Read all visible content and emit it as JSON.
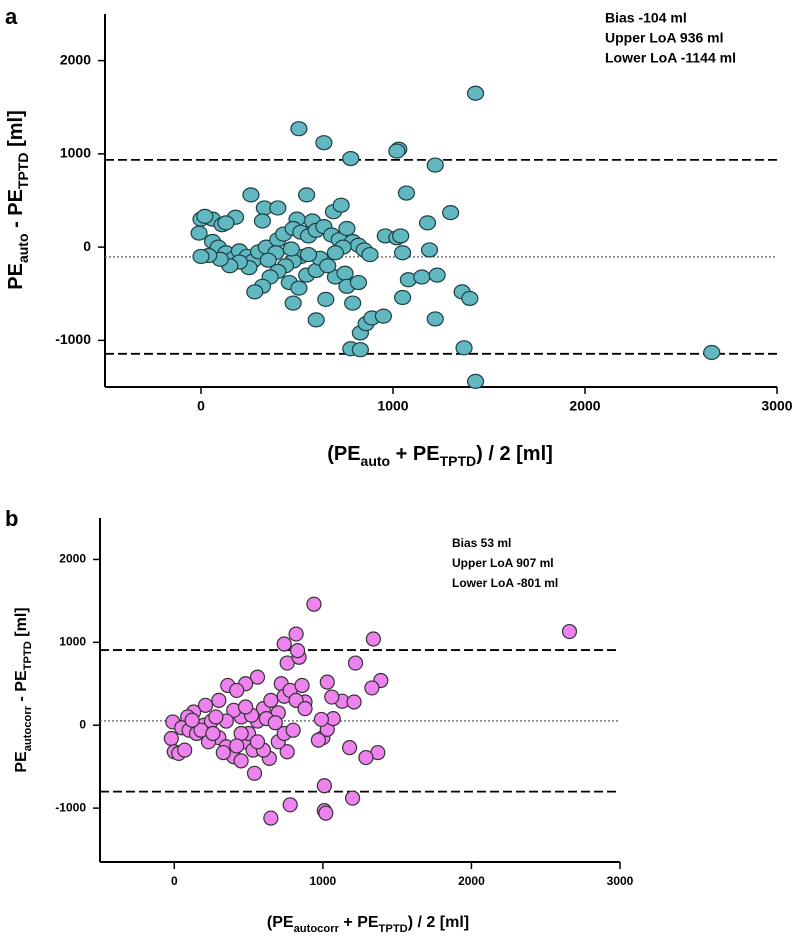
{
  "chart_data": [
    {
      "type": "scatter",
      "panel": "a",
      "annotations": [
        "Bias -104 ml",
        "Upper LoA 936 ml",
        "Lower LoA -1144 ml"
      ],
      "xlabel": [
        {
          "text": "(PE"
        },
        {
          "text": "auto",
          "sub": true
        },
        {
          "text": " + PE"
        },
        {
          "text": "TPTD",
          "sub": true
        },
        {
          "text": ") / 2 [ml]"
        }
      ],
      "ylabel": [
        {
          "text": "PE"
        },
        {
          "text": "auto",
          "sub": true
        },
        {
          "text": " - PE"
        },
        {
          "text": "TPTD",
          "sub": true
        },
        {
          "text": " [ml]"
        }
      ],
      "xlim": [
        -500,
        3000
      ],
      "xticks": [
        0,
        1000,
        2000,
        3000
      ],
      "ylim": [
        -1500,
        2500
      ],
      "yticks": [
        -1000,
        0,
        1000,
        2000
      ],
      "hlines": [
        {
          "value": -104,
          "style": "dotted"
        },
        {
          "value": 936,
          "style": "dashed"
        },
        {
          "value": -1144,
          "style": "dashed"
        }
      ],
      "color": "#62b8c0",
      "edgecolor": "#1d3f44",
      "marker": "ellipse",
      "x": [
        1430,
        510,
        640,
        780,
        1030,
        1020,
        1220,
        1070,
        1300,
        1180,
        550,
        260,
        330,
        400,
        690,
        730,
        580,
        500,
        320,
        180,
        60,
        0,
        20,
        110,
        130,
        -10,
        60,
        90,
        130,
        170,
        200,
        240,
        270,
        300,
        340,
        400,
        430,
        480,
        520,
        560,
        600,
        640,
        680,
        720,
        760,
        790,
        820,
        850,
        880,
        960,
        1020,
        1050,
        1080,
        1150,
        1230,
        1190,
        1040,
        520,
        480,
        440,
        400,
        360,
        320,
        280,
        250,
        200,
        150,
        100,
        40,
        0,
        460,
        510,
        550,
        600,
        650,
        700,
        750,
        760,
        790,
        820,
        830,
        860,
        890,
        950,
        600,
        480,
        1050,
        1220,
        1360,
        1400,
        780,
        830,
        1370,
        1430,
        2660,
        470,
        390,
        350,
        620,
        560,
        660,
        740,
        700
      ],
      "values": [
        1650,
        1270,
        1120,
        950,
        1050,
        1030,
        880,
        580,
        370,
        260,
        560,
        560,
        420,
        420,
        380,
        450,
        280,
        300,
        280,
        320,
        300,
        300,
        330,
        240,
        260,
        150,
        60,
        0,
        -60,
        -120,
        -40,
        -100,
        -150,
        -50,
        0,
        80,
        140,
        200,
        160,
        120,
        180,
        220,
        130,
        80,
        200,
        60,
        20,
        -30,
        -80,
        120,
        100,
        -60,
        -350,
        -320,
        -300,
        -30,
        120,
        -100,
        -150,
        -200,
        -260,
        -320,
        -420,
        -480,
        -220,
        -160,
        -200,
        -130,
        -90,
        -100,
        -380,
        -440,
        -300,
        -250,
        -560,
        -320,
        -280,
        -420,
        -600,
        -380,
        -920,
        -820,
        -760,
        -740,
        -780,
        -600,
        -540,
        -770,
        -480,
        -550,
        -1090,
        -1100,
        -1080,
        -1440,
        -1130,
        -20,
        -60,
        -140,
        -120,
        -80,
        -200,
        0,
        -60
      ]
    },
    {
      "type": "scatter",
      "panel": "b",
      "annotations": [
        "Bias 53 ml",
        "Upper LoA 907 ml",
        "Lower LoA -801 ml"
      ],
      "xlabel": [
        {
          "text": "(PE"
        },
        {
          "text": "autocorr",
          "sub": true
        },
        {
          "text": " + PE"
        },
        {
          "text": "TPTD",
          "sub": true
        },
        {
          "text": ") / 2 [ml]"
        }
      ],
      "ylabel": [
        {
          "text": "PE"
        },
        {
          "text": "autocorr",
          "sub": true
        },
        {
          "text": " - PE"
        },
        {
          "text": "TPTD",
          "sub": true
        },
        {
          "text": " [ml]"
        }
      ],
      "xlim": [
        -500,
        3000
      ],
      "xticks": [
        0,
        1000,
        2000,
        3000
      ],
      "ylim": [
        -1650,
        2500
      ],
      "yticks": [
        -1000,
        0,
        1000,
        2000
      ],
      "hlines": [
        {
          "value": 53,
          "style": "dotted"
        },
        {
          "value": 907,
          "style": "dashed"
        },
        {
          "value": -801,
          "style": "dashed"
        }
      ],
      "color": "#ee82ee",
      "edgecolor": "#333333",
      "marker": "circle",
      "x": [
        940,
        2660,
        1340,
        820,
        740,
        760,
        840,
        830,
        1220,
        1030,
        1390,
        1330,
        1130,
        1060,
        880,
        720,
        560,
        480,
        360,
        420,
        300,
        210,
        130,
        90,
        -10,
        50,
        -20,
        0,
        30,
        100,
        150,
        200,
        250,
        300,
        350,
        400,
        450,
        470,
        530,
        500,
        560,
        600,
        650,
        700,
        740,
        780,
        820,
        860,
        880,
        760,
        700,
        640,
        600,
        540,
        650,
        780,
        1010,
        1010,
        1020,
        1200,
        1370,
        1290,
        1180,
        1000,
        1030,
        970,
        1210,
        1070,
        990,
        450,
        400,
        350,
        280,
        230,
        180,
        120,
        70,
        450,
        520,
        620,
        680,
        740,
        800,
        560,
        480,
        420,
        260,
        330
      ],
      "values": [
        1460,
        1130,
        1040,
        1100,
        980,
        750,
        820,
        900,
        750,
        520,
        540,
        450,
        290,
        340,
        280,
        500,
        580,
        500,
        480,
        420,
        300,
        240,
        160,
        100,
        40,
        -30,
        -160,
        -320,
        -340,
        -60,
        -100,
        0,
        50,
        -150,
        -260,
        -380,
        -430,
        -200,
        -300,
        -100,
        50,
        200,
        300,
        150,
        350,
        420,
        300,
        480,
        200,
        -320,
        -200,
        -400,
        -300,
        -580,
        -1120,
        -960,
        -730,
        -1030,
        -1060,
        -880,
        -330,
        -390,
        -270,
        -150,
        -50,
        -180,
        280,
        80,
        70,
        100,
        180,
        50,
        100,
        -200,
        -60,
        60,
        -300,
        -100,
        120,
        80,
        30,
        -100,
        -60,
        -200,
        220,
        -250,
        -100,
        -330
      ]
    }
  ]
}
